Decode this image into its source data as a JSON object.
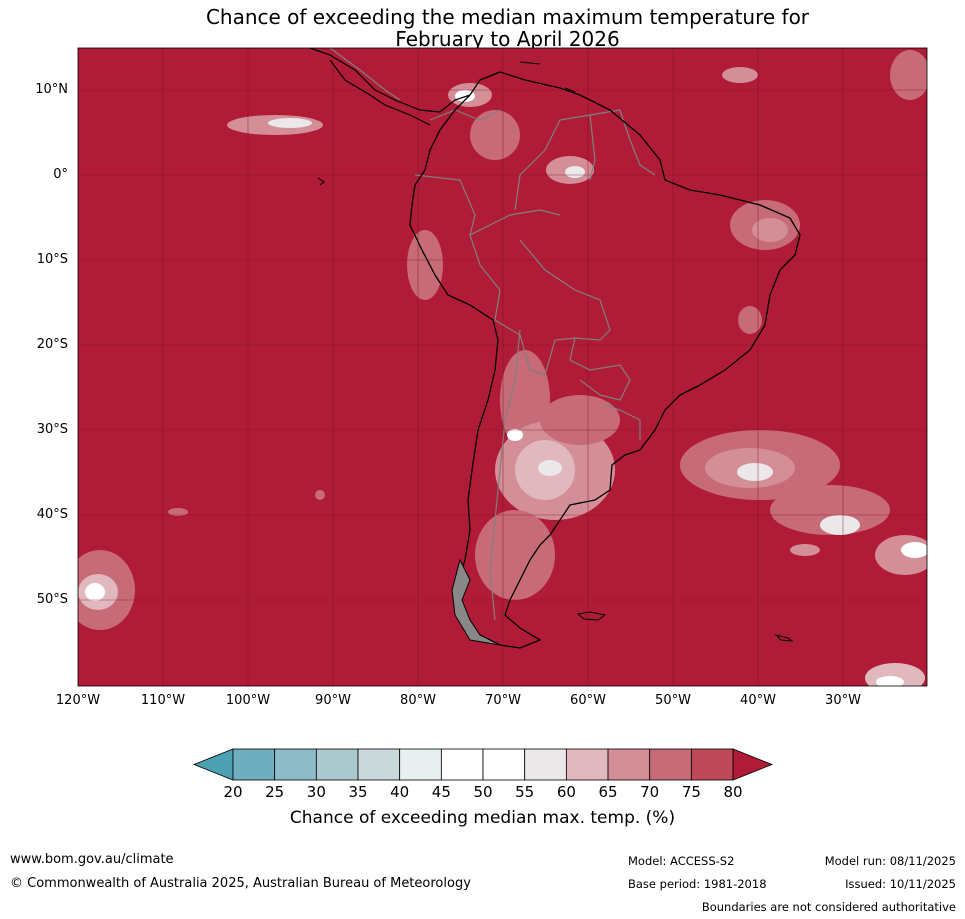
{
  "title": {
    "line1": "Chance of exceeding the median maximum temperature for",
    "line2": "February to April 2026"
  },
  "map": {
    "region": "South America",
    "latitude_labels": [
      "10°N",
      "0°",
      "10°S",
      "20°S",
      "30°S",
      "40°S",
      "50°S"
    ],
    "longitude_labels": [
      "120°W",
      "110°W",
      "100°W",
      "90°W",
      "80°W",
      "70°W",
      "60°W",
      "50°W",
      "40°W",
      "30°W"
    ],
    "dominant_category": "80",
    "colors": {
      "ocean_fill": "#b01c37",
      "land_outline": "#000000",
      "internal_borders": "#7f7f7f",
      "gridlines": "#7a1020"
    }
  },
  "colorbar": {
    "ticks": [
      "20",
      "25",
      "30",
      "35",
      "40",
      "45",
      "50",
      "55",
      "60",
      "65",
      "70",
      "75",
      "80"
    ],
    "colors": [
      "#4ca1b2",
      "#6faebe",
      "#8dbbc7",
      "#aac8cd",
      "#c9d9da",
      "#e9eff1",
      "#ffffff",
      "#ffffff",
      "#eae8e8",
      "#e0b8bd",
      "#d48e98",
      "#c76b78",
      "#be4a59",
      "#b01c37"
    ],
    "label": "Chance of exceeding median max. temp. (%)"
  },
  "footer": {
    "url": "www.bom.gov.au/climate",
    "copyright": "© Commonwealth of Australia 2025, Australian Bureau of Meteorology",
    "model": "Model: ACCESS-S2",
    "base_period": "Base period: 1981-2018",
    "model_run": "Model run: 08/11/2025",
    "issued": "Issued: 10/11/2025",
    "disclaimer": "Boundaries are not considered authoritative"
  }
}
